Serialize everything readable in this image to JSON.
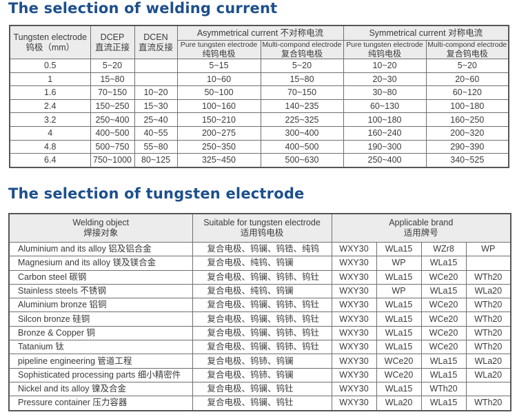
{
  "current_section": {
    "title": "The selection of welding current",
    "headers": {
      "electrode": {
        "en": "Tungsten electrode",
        "cn": "钨极（mm）"
      },
      "dcep": {
        "en": "DCEP",
        "cn": "直流正接"
      },
      "dcen": {
        "en": "DCEN",
        "cn": "直流反接"
      },
      "asymmetrical": "Asymmetrical current  不对称电流",
      "symmetrical": "Symmetrical current   对称电流",
      "pure": {
        "en": "Pure tungsten electrode",
        "cn": "纯钨电极"
      },
      "multi": {
        "en": "Multi-compond electrode",
        "cn": "复合钨电极"
      }
    },
    "rows": [
      {
        "dia": "0.5",
        "dcep": "5~20",
        "dcen": "",
        "asym_pure": "5~15",
        "asym_multi": "5~20",
        "sym_pure": "10~20",
        "sym_multi": "5~20"
      },
      {
        "dia": "1",
        "dcep": "15~80",
        "dcen": "",
        "asym_pure": "10~60",
        "asym_multi": "15~80",
        "sym_pure": "20~30",
        "sym_multi": "20~60"
      },
      {
        "dia": "1.6",
        "dcep": "70~150",
        "dcen": "10~20",
        "asym_pure": "50~100",
        "asym_multi": "70~150",
        "sym_pure": "30~80",
        "sym_multi": "60~120"
      },
      {
        "dia": "2.4",
        "dcep": "150~250",
        "dcen": "15~30",
        "asym_pure": "100~160",
        "asym_multi": "140~235",
        "sym_pure": "60~130",
        "sym_multi": "100~180"
      },
      {
        "dia": "3.2",
        "dcep": "250~400",
        "dcen": "25~40",
        "asym_pure": "150~210",
        "asym_multi": "225~325",
        "sym_pure": "100~180",
        "sym_multi": "160~250"
      },
      {
        "dia": "4",
        "dcep": "400~500",
        "dcen": "40~55",
        "asym_pure": "200~275",
        "asym_multi": "300~400",
        "sym_pure": "160~240",
        "sym_multi": "200~320"
      },
      {
        "dia": "4.8",
        "dcep": "500~750",
        "dcen": "55~80",
        "asym_pure": "250~350",
        "asym_multi": "400~500",
        "sym_pure": "190~300",
        "sym_multi": "290~390"
      },
      {
        "dia": "6.4",
        "dcep": "750~1000",
        "dcen": "80~125",
        "asym_pure": "325~450",
        "asym_multi": "500~630",
        "sym_pure": "250~400",
        "sym_multi": "340~525"
      }
    ]
  },
  "electrode_section": {
    "title": "The selection of tungsten electrode",
    "headers": {
      "object": {
        "en": "Welding object",
        "cn": "焊接对象"
      },
      "suitable": {
        "en": "Suitable for tungsten electrode",
        "cn": "适用钨电极"
      },
      "brand": {
        "en": "Applicable brand",
        "cn": "适用牌号"
      }
    },
    "rows": [
      {
        "object": "Aluminium and its alloy  铝及铝合金",
        "suitable": "复合电极、钨镧、钨锆、纯钨",
        "brands": [
          "WXY30",
          "WLa15",
          "WZr8",
          "WP"
        ]
      },
      {
        "object": "Magnesium and its alloy  镁及镁合金",
        "suitable": "复合电极、纯钨、钨镧",
        "brands": [
          "WXY30",
          "WP",
          "WLa15",
          ""
        ]
      },
      {
        "object": "Carbon steel  碳钢",
        "suitable": "复合电极、钨镧、钨铈、钨钍",
        "brands": [
          "WXY30",
          "WLa15",
          "WCe20",
          "WTh20"
        ]
      },
      {
        "object": "Stainless steels 不锈钢",
        "suitable": "复合电极、纯钨、钨镧",
        "brands": [
          "WXY30",
          "WP",
          "WLa15",
          "WLa20"
        ]
      },
      {
        "object": "Aluminium bronze 铝铜",
        "suitable": "复合电极、钨镧、钨铈、钨钍",
        "brands": [
          "WXY30",
          "WLa15",
          "WCe20",
          "WTh20"
        ]
      },
      {
        "object": "Silcon bronze  硅铜",
        "suitable": "复合电极、钨镧、钨铈、钨钍",
        "brands": [
          "WXY30",
          "WLa15",
          "WCe20",
          "WTh20"
        ]
      },
      {
        "object": "Bronze & Copper 铜",
        "suitable": "复合电极、钨镧、钨铈、钨钍",
        "brands": [
          "WXY30",
          "WLa15",
          "WCe20",
          "WTh20"
        ]
      },
      {
        "object": "Tatanium 钛",
        "suitable": "复合电极、钨镧、钨铈、钨钍",
        "brands": [
          "WXY30",
          "WLa15",
          "WCe20",
          "WTh20"
        ]
      },
      {
        "object": "pipeline engineering 管道工程",
        "suitable": "复合电极、钨铈、钨镧",
        "brands": [
          "WXY30",
          "WCe20",
          "WLa15",
          "WLa20"
        ]
      },
      {
        "object": "Sophisticated processing parts 细小精密件",
        "suitable": "复合电极、钨铈、钨镧",
        "brands": [
          "WXY30",
          "WCe20",
          "WLa15",
          "WLa20"
        ]
      },
      {
        "object": "Nickel and its alloy  镍及合金",
        "suitable": "复合电极、钨镧、钨钍",
        "brands": [
          "WXY30",
          "WLa15",
          "WTh20",
          ""
        ]
      },
      {
        "object": "Pressure container  压力容器",
        "suitable": "复合电极、钨镧、钨钍",
        "brands": [
          "WXY30",
          "WLa20",
          "WLa15",
          "WTh20"
        ]
      }
    ]
  },
  "colors": {
    "title": "#1d4f8c",
    "header_bg": "#ececec",
    "border": "#6e6e6e",
    "text": "#3a3a3a"
  }
}
